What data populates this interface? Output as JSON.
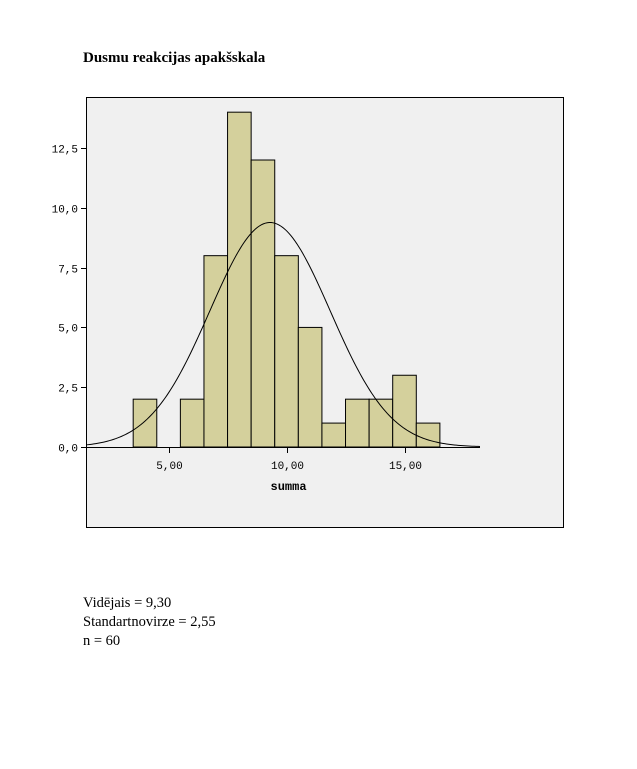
{
  "chart_data": {
    "type": "bar",
    "title": "Dusmu reakcijas apakšskala",
    "xlabel": "summa",
    "ylabel": "",
    "xlim": [
      1.5,
      18.2
    ],
    "ylim": [
      0,
      14.3
    ],
    "x_ticks": [
      5.0,
      10.0,
      15.0
    ],
    "x_tick_labels": [
      "5,00",
      "10,00",
      "15,00"
    ],
    "y_ticks": [
      0,
      2.5,
      5.0,
      7.5,
      10.0,
      12.5
    ],
    "y_tick_labels": [
      "0,0",
      "2,5",
      "5,0",
      "7,5",
      "10,0",
      "12,5"
    ],
    "bins": [
      {
        "x0": 3.5,
        "x1": 4.5,
        "count": 2
      },
      {
        "x0": 4.5,
        "x1": 5.5,
        "count": 0
      },
      {
        "x0": 5.5,
        "x1": 6.5,
        "count": 2
      },
      {
        "x0": 6.5,
        "x1": 7.5,
        "count": 8
      },
      {
        "x0": 7.5,
        "x1": 8.5,
        "count": 14
      },
      {
        "x0": 8.5,
        "x1": 9.5,
        "count": 12
      },
      {
        "x0": 9.5,
        "x1": 10.5,
        "count": 8
      },
      {
        "x0": 10.5,
        "x1": 11.5,
        "count": 5
      },
      {
        "x0": 11.5,
        "x1": 12.5,
        "count": 1
      },
      {
        "x0": 12.5,
        "x1": 13.5,
        "count": 2
      },
      {
        "x0": 13.5,
        "x1": 14.5,
        "count": 2
      },
      {
        "x0": 14.5,
        "x1": 15.5,
        "count": 3
      },
      {
        "x0": 15.5,
        "x1": 16.5,
        "count": 1
      }
    ],
    "normal_curve": {
      "mean": 9.3,
      "sd": 2.55,
      "n": 60
    },
    "colors": {
      "bar_fill": "#d4d09c",
      "bar_stroke": "#000000",
      "plot_background": "#f0f0f0",
      "curve": "#000000"
    },
    "grid": false,
    "legend": "none"
  },
  "stats": {
    "mean_line": "Vidējais = 9,30",
    "sd_line": "Standartnovirze = 2,55",
    "n_line": "n = 60"
  }
}
